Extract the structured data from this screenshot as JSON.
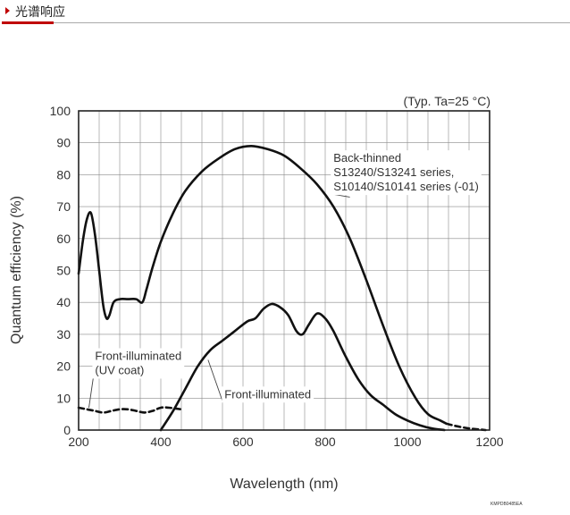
{
  "header": {
    "title": "光谱响应"
  },
  "chart_data": {
    "type": "line",
    "title": "",
    "condition": "(Typ. Ta=25 °C)",
    "xlabel": "Wavelength (nm)",
    "ylabel": "Quantum efficiency (%)",
    "xlim": [
      200,
      1200
    ],
    "ylim": [
      0,
      100
    ],
    "xticks": [
      200,
      400,
      600,
      800,
      1000,
      1200
    ],
    "yticks": [
      0,
      10,
      20,
      30,
      40,
      50,
      60,
      70,
      80,
      90,
      100
    ],
    "grid": true,
    "series": [
      {
        "key": "back_thinned",
        "name_lines": [
          "Back-thinned",
          "S13240/S13241 series,",
          "S10140/S10141 series (-01)"
        ],
        "style": "solid",
        "points": [
          [
            200,
            49
          ],
          [
            210,
            59
          ],
          [
            220,
            66
          ],
          [
            230,
            68
          ],
          [
            240,
            61
          ],
          [
            250,
            50
          ],
          [
            260,
            39
          ],
          [
            268,
            35
          ],
          [
            275,
            36
          ],
          [
            285,
            40
          ],
          [
            300,
            41
          ],
          [
            320,
            41
          ],
          [
            340,
            41
          ],
          [
            355,
            40
          ],
          [
            365,
            44
          ],
          [
            380,
            51
          ],
          [
            400,
            59
          ],
          [
            430,
            68
          ],
          [
            460,
            75
          ],
          [
            500,
            81
          ],
          [
            540,
            85
          ],
          [
            580,
            88
          ],
          [
            620,
            89
          ],
          [
            660,
            88
          ],
          [
            700,
            86
          ],
          [
            740,
            82
          ],
          [
            780,
            77
          ],
          [
            820,
            70
          ],
          [
            860,
            60
          ],
          [
            900,
            47
          ],
          [
            940,
            33
          ],
          [
            980,
            20
          ],
          [
            1020,
            10
          ],
          [
            1050,
            5
          ],
          [
            1080,
            3
          ],
          [
            1095,
            2
          ]
        ],
        "extension": {
          "style": "dashed",
          "points": [
            [
              1095,
              2
            ],
            [
              1120,
              1.2
            ],
            [
              1150,
              0.5
            ],
            [
              1175,
              0.2
            ],
            [
              1190,
              0
            ]
          ]
        }
      },
      {
        "key": "front_uv",
        "name_lines": [
          "Front-illuminated",
          "(UV coat)"
        ],
        "style": "dashed",
        "points": [
          [
            200,
            7
          ],
          [
            220,
            6.5
          ],
          [
            240,
            6
          ],
          [
            260,
            5.5
          ],
          [
            280,
            6
          ],
          [
            300,
            6.5
          ],
          [
            320,
            6.5
          ],
          [
            340,
            6
          ],
          [
            360,
            5.5
          ],
          [
            380,
            6
          ],
          [
            400,
            7
          ],
          [
            420,
            7
          ],
          [
            450,
            6.5
          ]
        ]
      },
      {
        "key": "front",
        "name_lines": [
          "Front-illuminated"
        ],
        "style": "solid",
        "points": [
          [
            400,
            0
          ],
          [
            430,
            6
          ],
          [
            460,
            13
          ],
          [
            490,
            20
          ],
          [
            520,
            25
          ],
          [
            550,
            28
          ],
          [
            580,
            31
          ],
          [
            610,
            34
          ],
          [
            630,
            35
          ],
          [
            650,
            38
          ],
          [
            670,
            39.5
          ],
          [
            690,
            38.5
          ],
          [
            710,
            36
          ],
          [
            730,
            31
          ],
          [
            745,
            30
          ],
          [
            760,
            33
          ],
          [
            780,
            36.5
          ],
          [
            800,
            35
          ],
          [
            820,
            31
          ],
          [
            850,
            23
          ],
          [
            880,
            16
          ],
          [
            910,
            11
          ],
          [
            940,
            8
          ],
          [
            970,
            5
          ],
          [
            1000,
            3
          ],
          [
            1030,
            1.5
          ],
          [
            1060,
            0.5
          ],
          [
            1090,
            0
          ]
        ]
      }
    ],
    "annotations": [
      {
        "series": "back_thinned",
        "label_at": [
          820,
          84
        ],
        "points_to": [
          860,
          73
        ]
      },
      {
        "series": "front_uv",
        "label_at": [
          240,
          22
        ],
        "points_to": [
          225,
          7
        ]
      },
      {
        "series": "front",
        "label_at": [
          555,
          10
        ],
        "points_to": [
          515,
          22
        ]
      }
    ],
    "footnote": "KMPDB0485EA"
  }
}
